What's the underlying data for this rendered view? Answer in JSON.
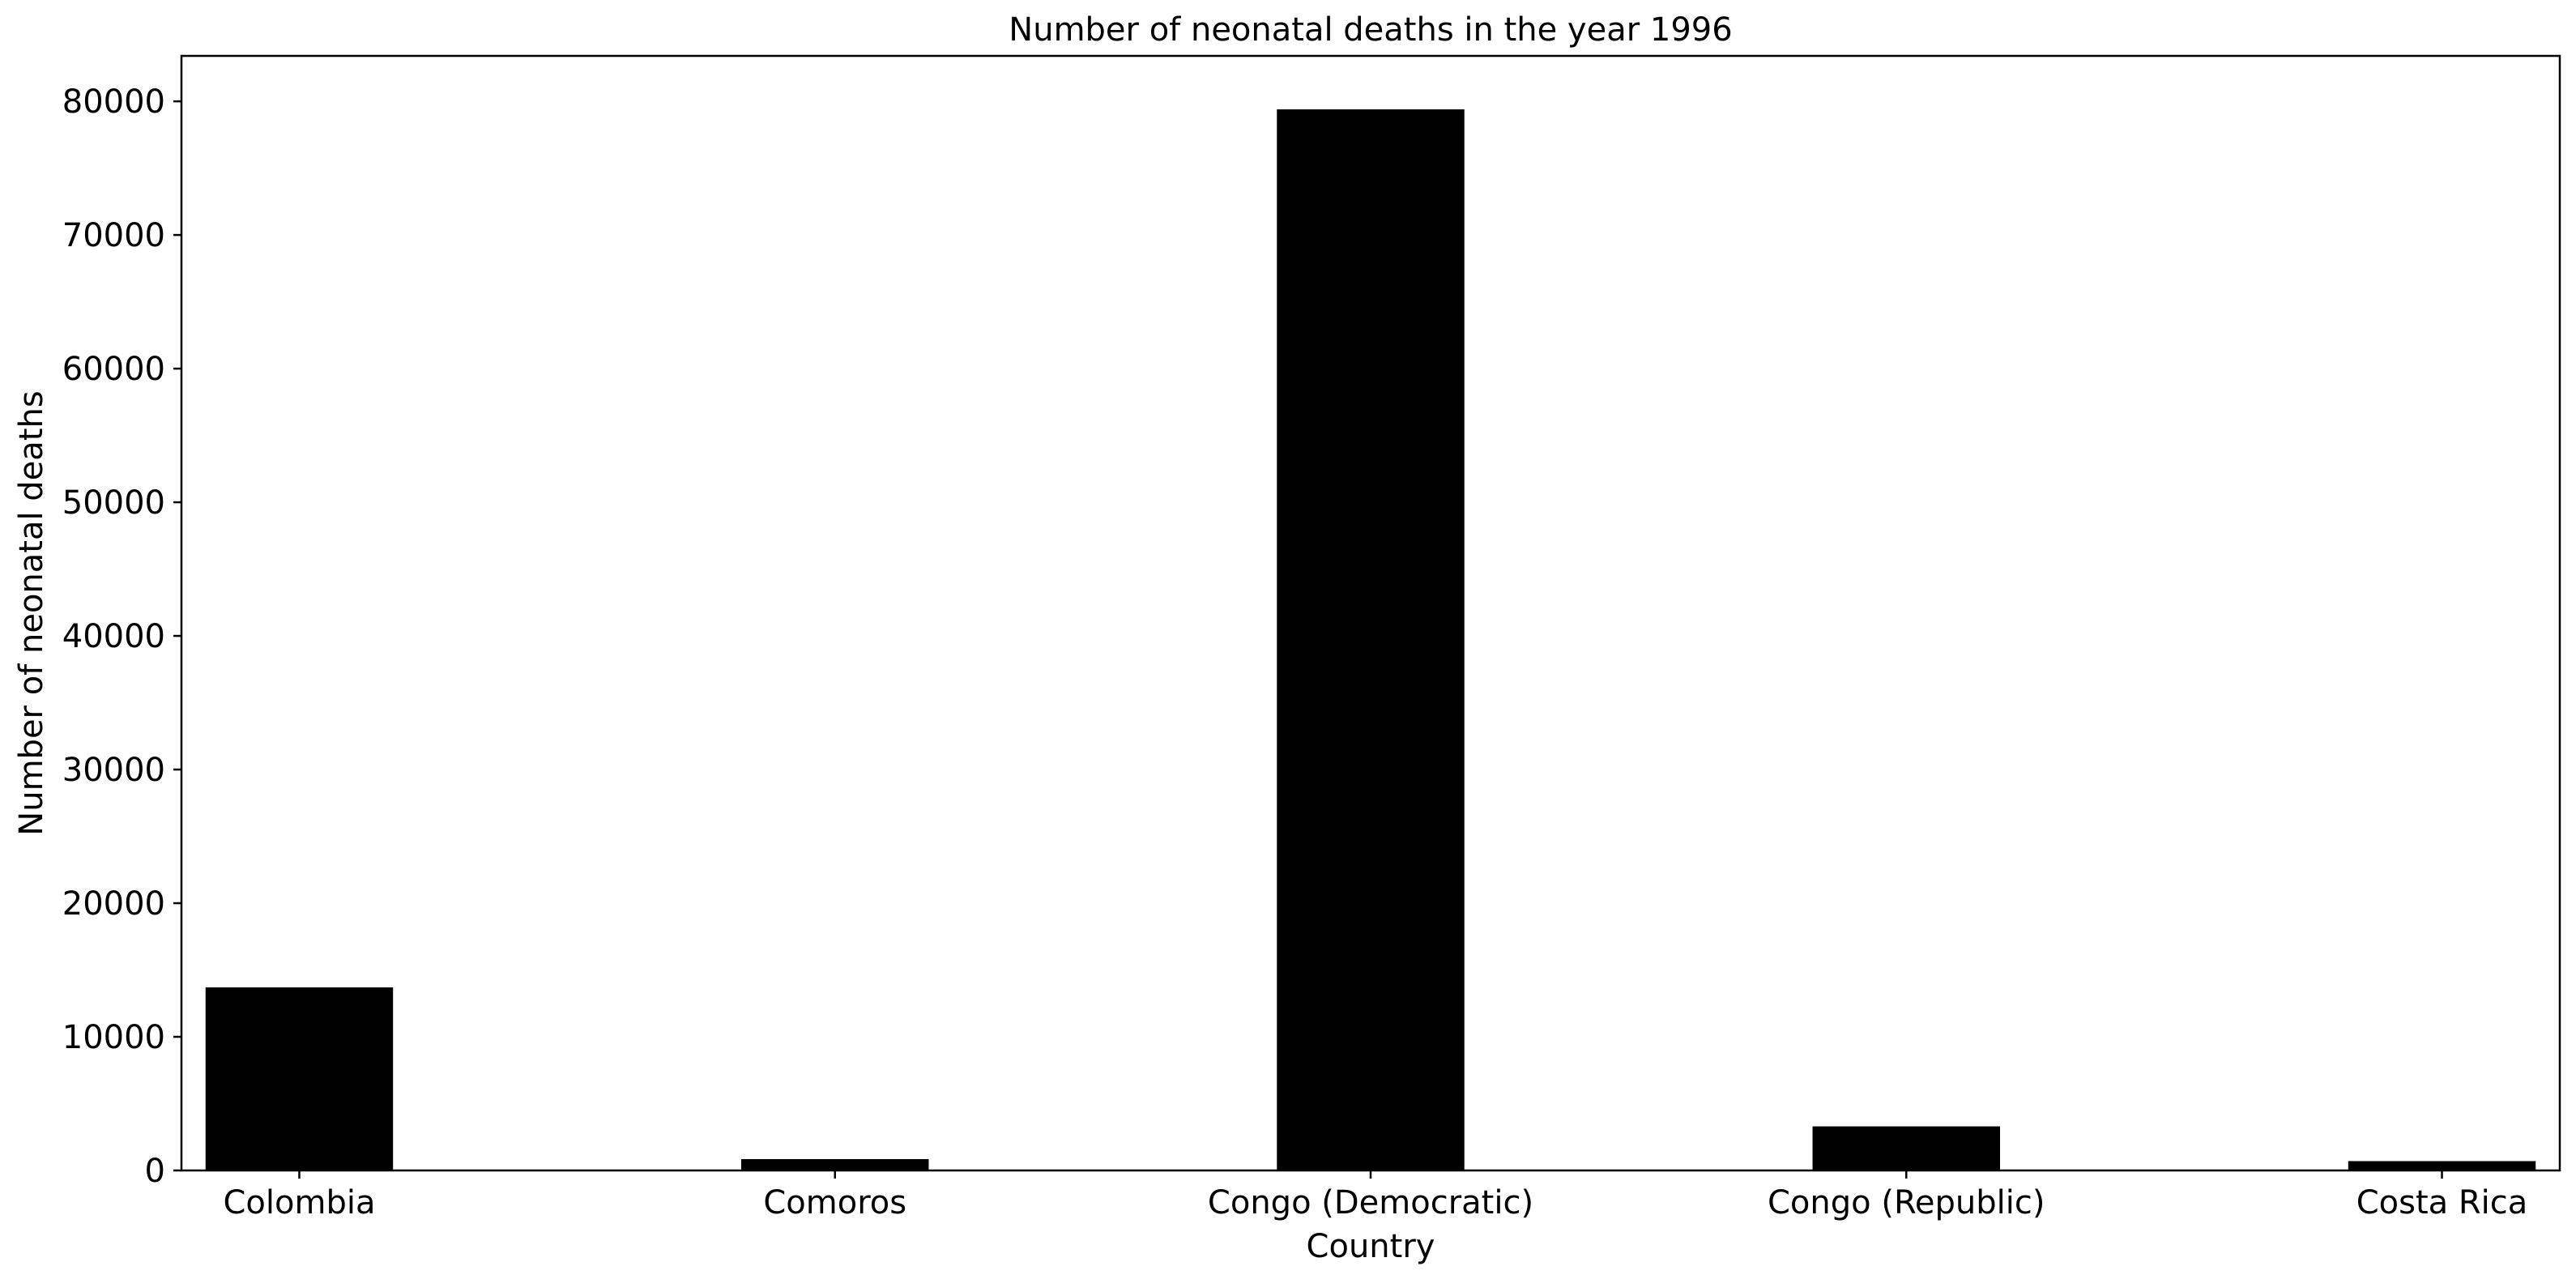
{
  "chart_data": {
    "type": "bar",
    "title": "Number of neonatal deaths in the year 1996",
    "xlabel": "Country",
    "ylabel": "Number of neonatal deaths",
    "categories": [
      "Colombia",
      "Comoros",
      "Congo (Democratic)",
      "Congo (Republic)",
      "Costa Rica"
    ],
    "values": [
      13700,
      850,
      79400,
      3300,
      700
    ],
    "ylim": [
      0,
      83400
    ],
    "yticks": [
      0,
      10000,
      20000,
      30000,
      40000,
      50000,
      60000,
      70000,
      80000
    ],
    "grid": false,
    "bar_color": "#000000"
  }
}
